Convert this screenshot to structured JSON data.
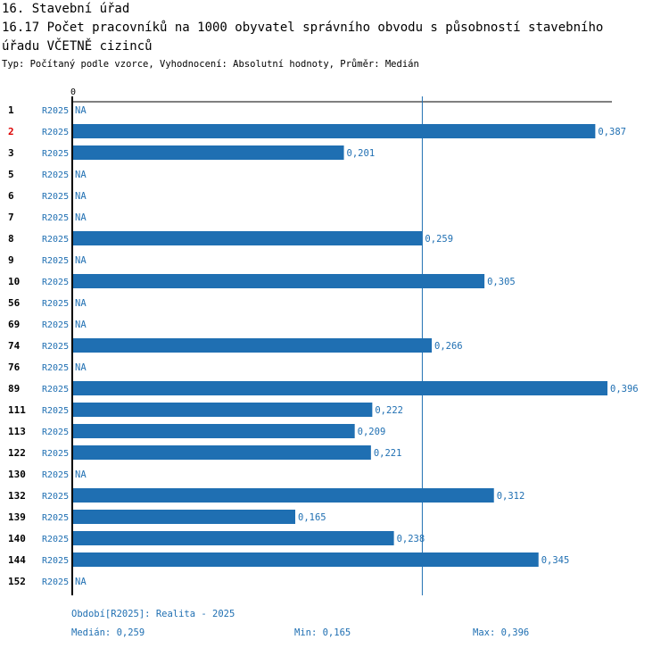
{
  "header": {
    "line1": "16. Stavební úřad",
    "line2": "16.17 Počet pracovníků na 1000 obyvatel správního obvodu s působností stavebního",
    "line3": "úřadu VČETNĚ cizinců",
    "subtitle": "Typ: Počítaný podle vzorce, Vyhodnocení: Absolutní hodnoty, Průměr: Medián"
  },
  "chart_data": {
    "type": "bar",
    "orientation": "horizontal",
    "title": "16.17 Počet pracovníků na 1000 obyvatel správního obvodu s působností stavebního úřadu VČETNĚ cizinců",
    "axis_zero_label": "0",
    "xlim": [
      0,
      0.396
    ],
    "median_line": 0.259,
    "highlight_color": "#dd0000",
    "bar_color": "#1f6fb2",
    "rows": [
      {
        "id": "1",
        "period": "R2025",
        "value": null,
        "label": "NA",
        "highlight": false
      },
      {
        "id": "2",
        "period": "R2025",
        "value": 0.387,
        "label": "0,387",
        "highlight": true
      },
      {
        "id": "3",
        "period": "R2025",
        "value": 0.201,
        "label": "0,201",
        "highlight": false
      },
      {
        "id": "5",
        "period": "R2025",
        "value": null,
        "label": "NA",
        "highlight": false
      },
      {
        "id": "6",
        "period": "R2025",
        "value": null,
        "label": "NA",
        "highlight": false
      },
      {
        "id": "7",
        "period": "R2025",
        "value": null,
        "label": "NA",
        "highlight": false
      },
      {
        "id": "8",
        "period": "R2025",
        "value": 0.259,
        "label": "0,259",
        "highlight": false
      },
      {
        "id": "9",
        "period": "R2025",
        "value": null,
        "label": "NA",
        "highlight": false
      },
      {
        "id": "10",
        "period": "R2025",
        "value": 0.305,
        "label": "0,305",
        "highlight": false
      },
      {
        "id": "56",
        "period": "R2025",
        "value": null,
        "label": "NA",
        "highlight": false
      },
      {
        "id": "69",
        "period": "R2025",
        "value": null,
        "label": "NA",
        "highlight": false
      },
      {
        "id": "74",
        "period": "R2025",
        "value": 0.266,
        "label": "0,266",
        "highlight": false
      },
      {
        "id": "76",
        "period": "R2025",
        "value": null,
        "label": "NA",
        "highlight": false
      },
      {
        "id": "89",
        "period": "R2025",
        "value": 0.396,
        "label": "0,396",
        "highlight": false
      },
      {
        "id": "111",
        "period": "R2025",
        "value": 0.222,
        "label": "0,222",
        "highlight": false
      },
      {
        "id": "113",
        "period": "R2025",
        "value": 0.209,
        "label": "0,209",
        "highlight": false
      },
      {
        "id": "122",
        "period": "R2025",
        "value": 0.221,
        "label": "0,221",
        "highlight": false
      },
      {
        "id": "130",
        "period": "R2025",
        "value": null,
        "label": "NA",
        "highlight": false
      },
      {
        "id": "132",
        "period": "R2025",
        "value": 0.312,
        "label": "0,312",
        "highlight": false
      },
      {
        "id": "139",
        "period": "R2025",
        "value": 0.165,
        "label": "0,165",
        "highlight": false
      },
      {
        "id": "140",
        "period": "R2025",
        "value": 0.238,
        "label": "0,238",
        "highlight": false
      },
      {
        "id": "144",
        "period": "R2025",
        "value": 0.345,
        "label": "0,345",
        "highlight": false
      },
      {
        "id": "152",
        "period": "R2025",
        "value": null,
        "label": "NA",
        "highlight": false
      }
    ]
  },
  "footer": {
    "period": "Období[R2025]: Realita - 2025",
    "median": "Medián: 0,259",
    "min": "Min: 0,165",
    "max": "Max: 0,396"
  }
}
